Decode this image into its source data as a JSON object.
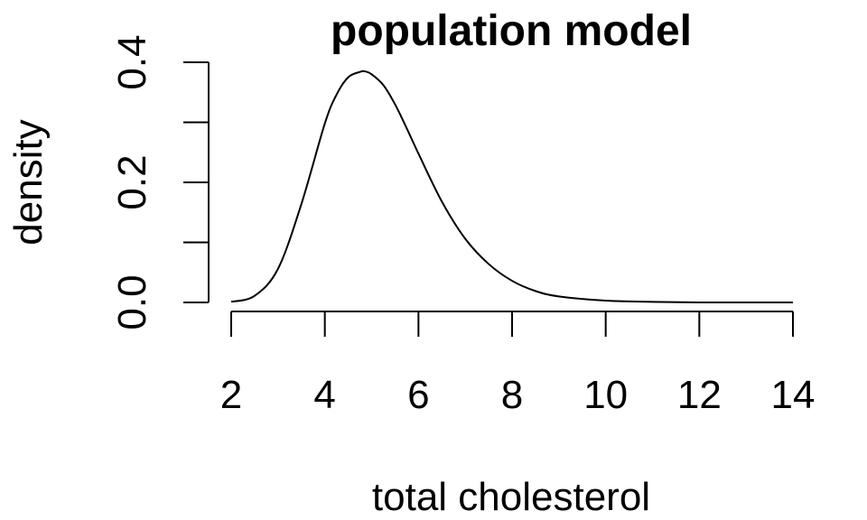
{
  "chart_data": {
    "type": "line",
    "title": "population model",
    "xlabel": "total cholesterol",
    "ylabel": "density",
    "xlim": [
      2,
      14
    ],
    "ylim": [
      0,
      0.4
    ],
    "x_ticks": [
      2,
      4,
      6,
      8,
      10,
      12,
      14
    ],
    "x_tick_labels": [
      "2",
      "4",
      "6",
      "8",
      "10",
      "12",
      "14"
    ],
    "y_ticks": [
      0,
      0.1,
      0.2,
      0.3,
      0.4
    ],
    "y_tick_labels": [
      "0.0",
      "",
      "0.2",
      "",
      "0.4"
    ],
    "grid": false,
    "series": [
      {
        "x": [
          2.0,
          2.5,
          3.0,
          3.5,
          4.0,
          4.25,
          4.5,
          4.75,
          4.85,
          5.0,
          5.25,
          5.5,
          5.75,
          6.0,
          6.5,
          7.0,
          7.5,
          8.0,
          8.5,
          9.0,
          10.0,
          11.0,
          12.0,
          13.0,
          14.0
        ],
        "y": [
          0.001,
          0.011,
          0.056,
          0.164,
          0.298,
          0.346,
          0.375,
          0.384,
          0.385,
          0.38,
          0.362,
          0.33,
          0.29,
          0.248,
          0.168,
          0.106,
          0.064,
          0.036,
          0.019,
          0.01,
          0.003,
          0.001,
          0.0,
          0.0,
          0.0
        ]
      }
    ]
  }
}
